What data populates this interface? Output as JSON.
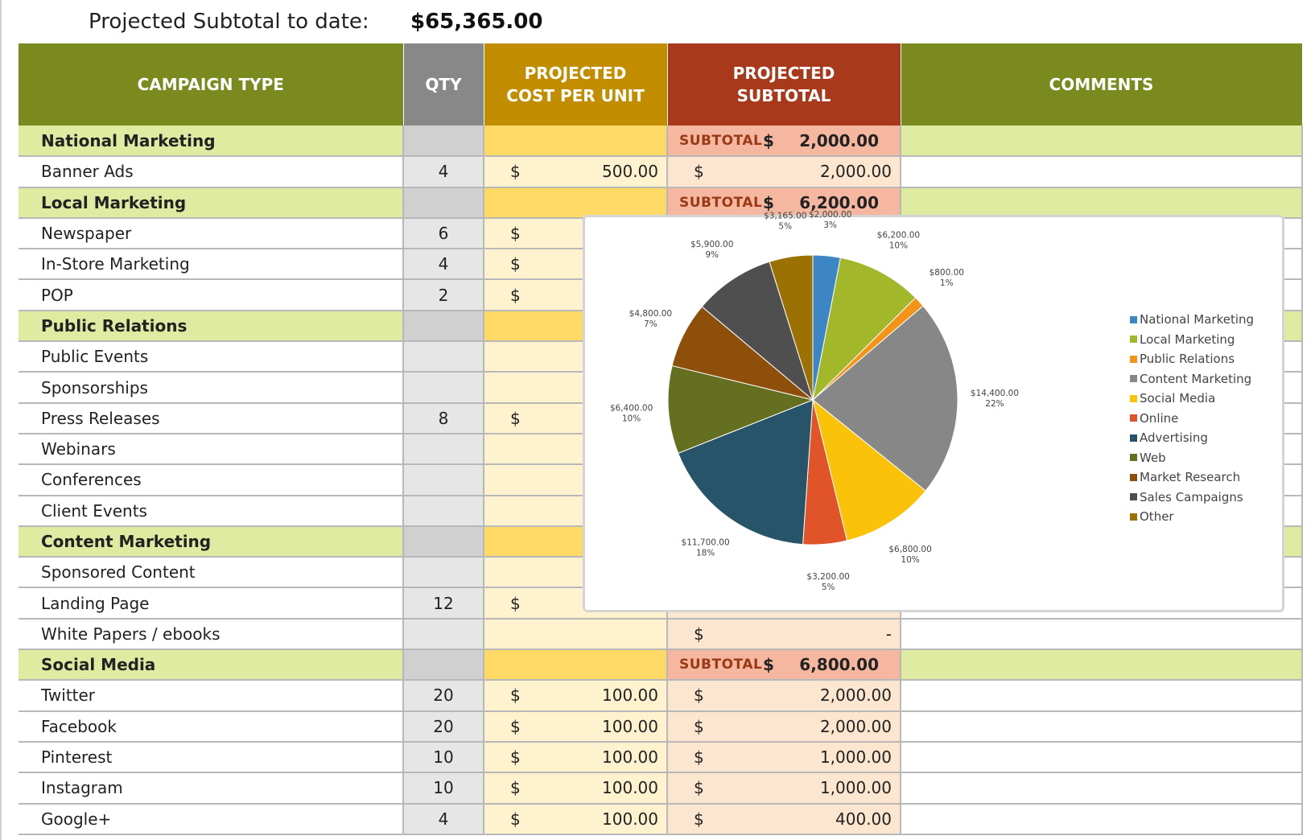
{
  "summary": {
    "label": "Projected Subtotal to date:",
    "value": "$65,365.00"
  },
  "headers": {
    "campaign_type": "CAMPAIGN TYPE",
    "qty": "QTY",
    "cost_line1": "PROJECTED",
    "cost_line2": "COST PER UNIT",
    "sub_line1": "PROJECTED",
    "sub_line2": "SUBTOTAL",
    "comments": "COMMENTS"
  },
  "rows": [
    {
      "kind": "section",
      "type": "National Marketing",
      "sub_label": "SUBTOTAL",
      "sub_cur": "$",
      "sub_amt": "2,000.00"
    },
    {
      "kind": "item",
      "type": "Banner Ads",
      "qty": "4",
      "cost_cur": "$",
      "cost_amt": "500.00",
      "sub_cur": "$",
      "sub_amt": "2,000.00"
    },
    {
      "kind": "section",
      "type": "Local Marketing",
      "sub_label": "SUBTOTAL",
      "sub_cur": "$",
      "sub_amt": "6,200.00"
    },
    {
      "kind": "item",
      "type": "Newspaper",
      "qty": "6",
      "cost_cur": "$",
      "cost_amt": "",
      "sub_cur": "",
      "sub_amt": ""
    },
    {
      "kind": "item",
      "type": "In-Store Marketing",
      "qty": "4",
      "cost_cur": "$",
      "cost_amt": "",
      "sub_cur": "",
      "sub_amt": ""
    },
    {
      "kind": "item",
      "type": "POP",
      "qty": "2",
      "cost_cur": "$",
      "cost_amt": "",
      "sub_cur": "",
      "sub_amt": ""
    },
    {
      "kind": "section",
      "type": "Public Relations",
      "sub_label": "",
      "sub_cur": "",
      "sub_amt": ""
    },
    {
      "kind": "item",
      "type": "Public Events",
      "qty": "",
      "cost_cur": "",
      "cost_amt": "",
      "sub_cur": "",
      "sub_amt": ""
    },
    {
      "kind": "item",
      "type": "Sponsorships",
      "qty": "",
      "cost_cur": "",
      "cost_amt": "",
      "sub_cur": "",
      "sub_amt": ""
    },
    {
      "kind": "item",
      "type": "Press Releases",
      "qty": "8",
      "cost_cur": "$",
      "cost_amt": "",
      "sub_cur": "",
      "sub_amt": ""
    },
    {
      "kind": "item",
      "type": "Webinars",
      "qty": "",
      "cost_cur": "",
      "cost_amt": "",
      "sub_cur": "",
      "sub_amt": ""
    },
    {
      "kind": "item",
      "type": "Conferences",
      "qty": "",
      "cost_cur": "",
      "cost_amt": "",
      "sub_cur": "",
      "sub_amt": ""
    },
    {
      "kind": "item",
      "type": "Client Events",
      "qty": "",
      "cost_cur": "",
      "cost_amt": "",
      "sub_cur": "",
      "sub_amt": ""
    },
    {
      "kind": "section",
      "type": "Content Marketing",
      "sub_label": "",
      "sub_cur": "",
      "sub_amt": ""
    },
    {
      "kind": "item",
      "type": "Sponsored Content",
      "qty": "",
      "cost_cur": "",
      "cost_amt": "",
      "sub_cur": "",
      "sub_amt": ""
    },
    {
      "kind": "item",
      "type": "Landing Page",
      "qty": "12",
      "cost_cur": "$",
      "cost_amt": "",
      "sub_cur": "",
      "sub_amt": ""
    },
    {
      "kind": "item",
      "type": "White Papers / ebooks",
      "qty": "",
      "cost_cur": "",
      "cost_amt": "",
      "sub_cur": "$",
      "sub_amt": "-"
    },
    {
      "kind": "section",
      "type": "Social Media",
      "sub_label": "SUBTOTAL",
      "sub_cur": "$",
      "sub_amt": "6,800.00"
    },
    {
      "kind": "item",
      "type": "Twitter",
      "qty": "20",
      "cost_cur": "$",
      "cost_amt": "100.00",
      "sub_cur": "$",
      "sub_amt": "2,000.00"
    },
    {
      "kind": "item",
      "type": "Facebook",
      "qty": "20",
      "cost_cur": "$",
      "cost_amt": "100.00",
      "sub_cur": "$",
      "sub_amt": "2,000.00"
    },
    {
      "kind": "item",
      "type": "Pinterest",
      "qty": "10",
      "cost_cur": "$",
      "cost_amt": "100.00",
      "sub_cur": "$",
      "sub_amt": "1,000.00"
    },
    {
      "kind": "item",
      "type": "Instagram",
      "qty": "10",
      "cost_cur": "$",
      "cost_amt": "100.00",
      "sub_cur": "$",
      "sub_amt": "1,000.00"
    },
    {
      "kind": "item",
      "type": "Google+",
      "qty": "4",
      "cost_cur": "$",
      "cost_amt": "100.00",
      "sub_cur": "$",
      "sub_amt": "400.00"
    }
  ],
  "chart_data": {
    "type": "pie",
    "legend_position": "right",
    "series": [
      {
        "name": "National Marketing",
        "value": 2000,
        "label": "$2,000.00",
        "pct": "3%",
        "color": "#3d86c6"
      },
      {
        "name": "Local Marketing",
        "value": 6200,
        "label": "$6,200.00",
        "pct": "10%",
        "color": "#a3b72a"
      },
      {
        "name": "Public Relations",
        "value": 800,
        "label": "$800.00",
        "pct": "1%",
        "color": "#f39419"
      },
      {
        "name": "Content Marketing",
        "value": 14400,
        "label": "$14,400.00",
        "pct": "22%",
        "color": "#878787"
      },
      {
        "name": "Social Media",
        "value": 6800,
        "label": "$6,800.00",
        "pct": "10%",
        "color": "#fbc20a"
      },
      {
        "name": "Online",
        "value": 3200,
        "label": "$3,200.00",
        "pct": "5%",
        "color": "#e1542a"
      },
      {
        "name": "Advertising",
        "value": 11700,
        "label": "$11,700.00",
        "pct": "18%",
        "color": "#285469"
      },
      {
        "name": "Web",
        "value": 6400,
        "label": "$6,400.00",
        "pct": "10%",
        "color": "#647020"
      },
      {
        "name": "Market Research",
        "value": 4800,
        "label": "$4,800.00",
        "pct": "7%",
        "color": "#8e4f0a"
      },
      {
        "name": "Sales Campaigns",
        "value": 5900,
        "label": "$5,900.00",
        "pct": "9%",
        "color": "#4f4f4f"
      },
      {
        "name": "Other",
        "value": 3165,
        "label": "$3,165.00",
        "pct": "5%",
        "color": "#9b7104"
      }
    ]
  }
}
